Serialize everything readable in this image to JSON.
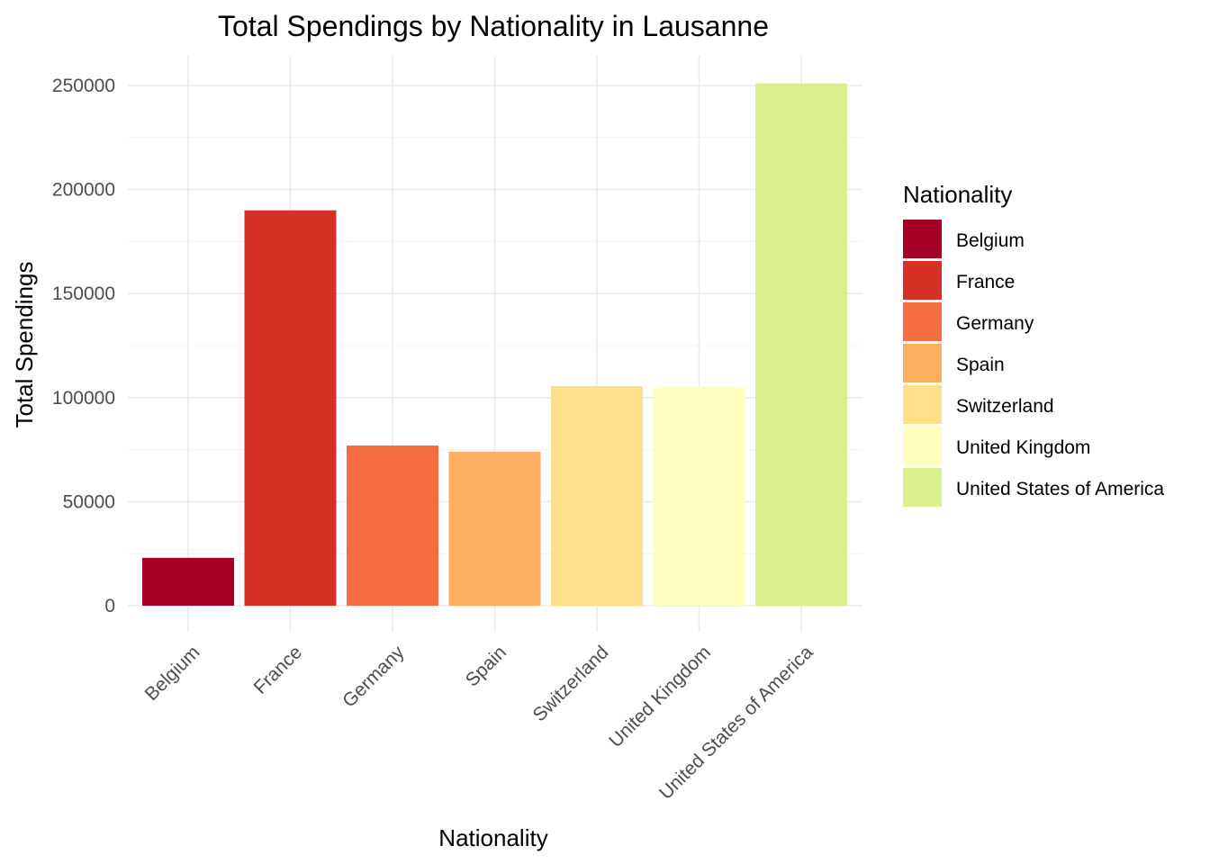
{
  "chart_data": {
    "type": "bar",
    "title": "Total Spendings by Nationality in Lausanne",
    "xlabel": "Nationality",
    "ylabel": "Total Spendings",
    "categories": [
      "Belgium",
      "France",
      "Germany",
      "Spain",
      "Switzerland",
      "United Kingdom",
      "United States of America"
    ],
    "values": [
      23000,
      190000,
      77000,
      74000,
      105500,
      105000,
      251000
    ],
    "colors": [
      "#a50026",
      "#d73027",
      "#f46d43",
      "#fdae61",
      "#fee08b",
      "#ffffbf",
      "#d9ef8b"
    ],
    "ylim": [
      0,
      260000
    ],
    "yticks": [
      0,
      50000,
      100000,
      150000,
      200000,
      250000
    ],
    "ytick_labels": [
      "0",
      "50000",
      "100000",
      "150000",
      "200000",
      "250000"
    ],
    "grid": true,
    "legend": {
      "title": "Nationality",
      "position": "right",
      "entries": [
        "Belgium",
        "France",
        "Germany",
        "Spain",
        "Switzerland",
        "United Kingdom",
        "United States of America"
      ]
    }
  }
}
